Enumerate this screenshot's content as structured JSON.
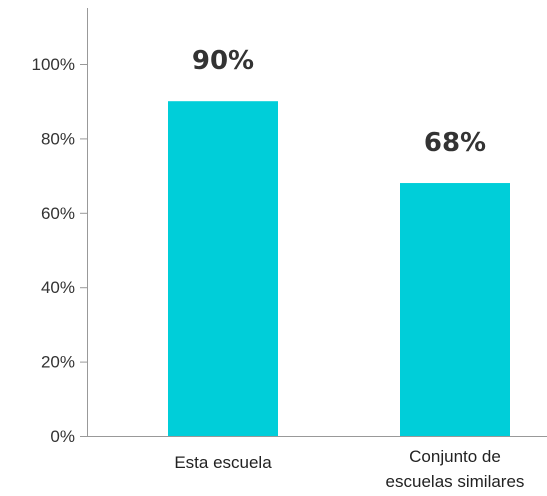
{
  "chart_data": {
    "type": "bar",
    "categories": [
      [
        "Esta escuela"
      ],
      [
        "Conjunto de",
        "escuelas similares"
      ]
    ],
    "values": [
      90,
      68
    ],
    "data_labels": [
      "90%",
      "68%"
    ],
    "y_ticks": [
      {
        "value": 0,
        "label": "0%"
      },
      {
        "value": 20,
        "label": "20%"
      },
      {
        "value": 40,
        "label": "40%"
      },
      {
        "value": 60,
        "label": "60%"
      },
      {
        "value": 80,
        "label": "80%"
      },
      {
        "value": 100,
        "label": "100%"
      }
    ],
    "ylim": [
      0,
      116
    ],
    "grid": false,
    "bar_color": "#00CED9",
    "title": "",
    "xlabel": "",
    "ylabel": ""
  }
}
